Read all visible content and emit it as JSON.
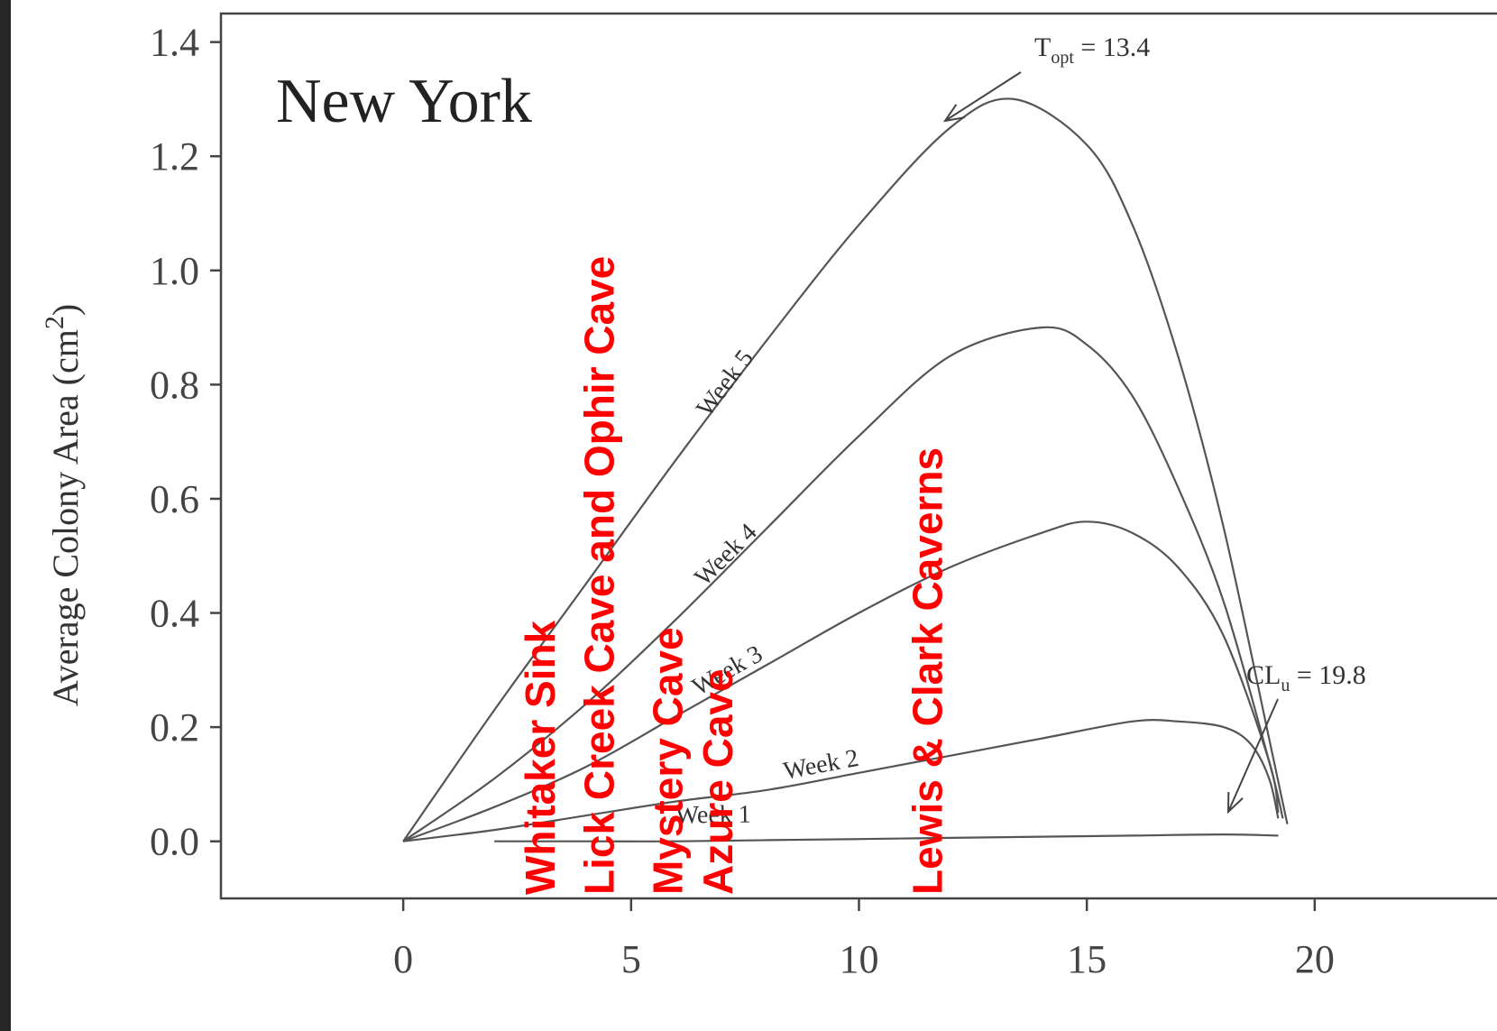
{
  "chart_data": {
    "type": "line",
    "title": "New York",
    "xlabel": "",
    "ylabel": "Average Colony Area (cm",
    "ylabel_sup": "2",
    "ylabel_close": ")",
    "xlim": [
      -4,
      24
    ],
    "ylim": [
      -0.1,
      1.45
    ],
    "xticks": [
      0,
      5,
      10,
      15,
      20
    ],
    "xtick_labels": [
      "0",
      "5",
      "10",
      "15",
      "20"
    ],
    "yticks": [
      0.0,
      0.2,
      0.4,
      0.6,
      0.8,
      1.0,
      1.2,
      1.4
    ],
    "ytick_labels": [
      "0.0",
      "0.2",
      "0.4",
      "0.6",
      "0.8",
      "1.0",
      "1.2",
      "1.4"
    ],
    "grid": false,
    "legend": "none",
    "series": [
      {
        "name": "Week 5",
        "x": [
          0,
          2,
          4,
          6,
          8,
          10,
          12,
          13.4,
          15,
          16,
          17,
          18,
          19,
          19.4
        ],
        "y": [
          0.0,
          0.23,
          0.45,
          0.67,
          0.88,
          1.08,
          1.25,
          1.3,
          1.22,
          1.08,
          0.85,
          0.55,
          0.18,
          0.03
        ]
      },
      {
        "name": "Week 4",
        "x": [
          0,
          2,
          4,
          6,
          8,
          10,
          12,
          14,
          15,
          16,
          17,
          18,
          19,
          19.3
        ],
        "y": [
          0.0,
          0.11,
          0.24,
          0.39,
          0.55,
          0.71,
          0.85,
          0.9,
          0.87,
          0.78,
          0.62,
          0.42,
          0.14,
          0.04
        ]
      },
      {
        "name": "Week 3",
        "x": [
          0,
          2,
          4,
          6,
          8,
          10,
          12,
          14,
          15,
          16,
          17,
          18,
          19,
          19.2
        ],
        "y": [
          0.0,
          0.06,
          0.13,
          0.22,
          0.31,
          0.4,
          0.48,
          0.54,
          0.56,
          0.54,
          0.48,
          0.36,
          0.14,
          0.05
        ]
      },
      {
        "name": "Week 2",
        "x": [
          0,
          2,
          4,
          6,
          8,
          10,
          12,
          14,
          16,
          17,
          18,
          18.6,
          19,
          19.2
        ],
        "y": [
          0.0,
          0.02,
          0.045,
          0.07,
          0.09,
          0.12,
          0.15,
          0.18,
          0.21,
          0.21,
          0.2,
          0.17,
          0.11,
          0.04
        ]
      },
      {
        "name": "Week 1",
        "x": [
          2,
          4,
          6,
          8,
          10,
          12,
          14,
          16,
          18,
          19.2
        ],
        "y": [
          0.0,
          0.0,
          0.0,
          0.002,
          0.004,
          0.006,
          0.008,
          0.01,
          0.012,
          0.01
        ]
      }
    ],
    "annotations": [
      {
        "text_main": "T",
        "text_sub": "opt",
        "text_rest": " = 13.4",
        "x": 13.4,
        "y": 1.3
      },
      {
        "text_main": "CL",
        "text_sub": "u",
        "text_rest": " = 19.8",
        "x": 19.8,
        "y": 0.02
      }
    ],
    "site_markers": [
      {
        "label": "Whitaker Sink",
        "x": 3.0
      },
      {
        "label": "Lick Creek Cave and Ophir Cave",
        "x": 4.3
      },
      {
        "label": "Mystery Cave",
        "x": 5.8
      },
      {
        "label": "Azure Cave",
        "x": 6.9
      },
      {
        "label": "Lewis & Clark Caverns",
        "x": 11.5
      }
    ],
    "colors": {
      "curves": "#555555",
      "site_labels": "#ff0000",
      "axes": "#444444"
    }
  }
}
